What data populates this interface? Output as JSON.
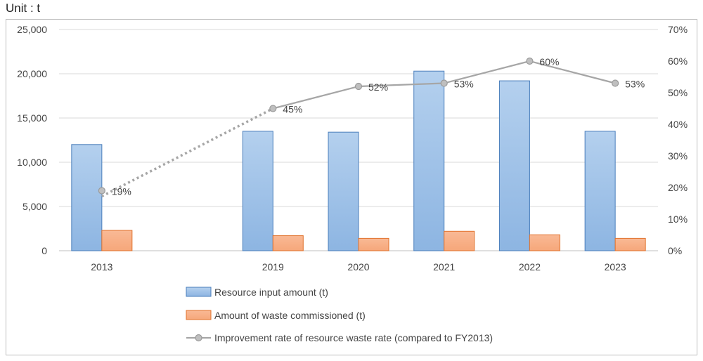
{
  "unit_label": "Unit : t",
  "chart_data": {
    "type": "bar",
    "categories": [
      "2013",
      "2019",
      "2020",
      "2021",
      "2022",
      "2023"
    ],
    "slot_positions": [
      0,
      2,
      3,
      4,
      5,
      6
    ],
    "y_left": {
      "min": 0,
      "max": 25000,
      "ticks": [
        "0",
        "5,000",
        "10,000",
        "15,000",
        "20,000",
        "25,000"
      ]
    },
    "y_right": {
      "min": 0,
      "max": 70,
      "ticks": [
        "0%",
        "10%",
        "20%",
        "30%",
        "40%",
        "50%",
        "60%",
        "70%"
      ]
    },
    "grid": true,
    "legend_position": "bottom",
    "series": [
      {
        "name": "Resource input amount (t)",
        "type": "bar",
        "axis": "left",
        "color": "#9dc3e6",
        "border": "#4a7ebb",
        "values": [
          12000,
          13500,
          13400,
          20300,
          19200,
          13500
        ]
      },
      {
        "name": "Amount of waste commissioned (t)",
        "type": "bar",
        "axis": "left",
        "color": "#f8b08a",
        "border": "#e0712b",
        "values": [
          2300,
          1700,
          1400,
          2200,
          1800,
          1400
        ]
      },
      {
        "name": "Improvement rate of resource waste rate (compared to FY2013)",
        "type": "line",
        "axis": "right",
        "color": "#a6a6a6",
        "values": [
          19,
          45,
          52,
          53,
          60,
          53
        ],
        "labels": [
          "19%",
          "45%",
          "52%",
          "53%",
          "60%",
          "53%"
        ],
        "dotted_first_segment": true
      }
    ]
  }
}
